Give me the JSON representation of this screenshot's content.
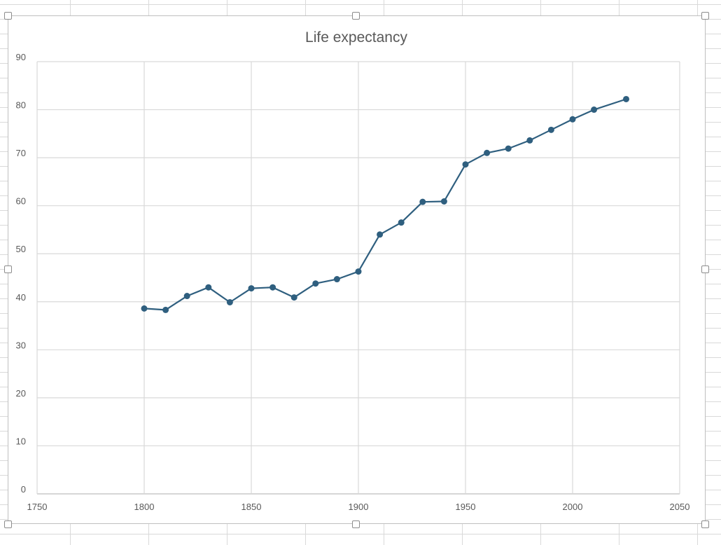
{
  "chart_data": {
    "type": "line",
    "title": "Life expectancy",
    "xlabel": "",
    "ylabel": "",
    "xlim": [
      1750,
      2050
    ],
    "ylim": [
      0,
      90
    ],
    "x_ticks": [
      1750,
      1800,
      1850,
      1900,
      1950,
      2000,
      2050
    ],
    "y_ticks": [
      0,
      10,
      20,
      30,
      40,
      50,
      60,
      70,
      80,
      90
    ],
    "grid": true,
    "series": [
      {
        "color": "#2f5f7f",
        "marker": "circle",
        "x": [
          1800,
          1810,
          1820,
          1830,
          1840,
          1850,
          1860,
          1870,
          1880,
          1890,
          1900,
          1910,
          1920,
          1930,
          1940,
          1950,
          1960,
          1970,
          1980,
          1990,
          2000,
          2010,
          2025
        ],
        "y": [
          38.6,
          38.3,
          41.2,
          43.0,
          39.9,
          42.8,
          43.0,
          40.9,
          43.8,
          44.7,
          46.3,
          54.0,
          56.5,
          60.8,
          60.9,
          68.6,
          71.0,
          71.9,
          73.6,
          75.8,
          78.0,
          80.0,
          82.2
        ]
      }
    ]
  },
  "colors": {
    "gridline": "#d9d9d9",
    "axis": "#bfbfbf",
    "text": "#595959",
    "series": "#2f5f7f"
  }
}
